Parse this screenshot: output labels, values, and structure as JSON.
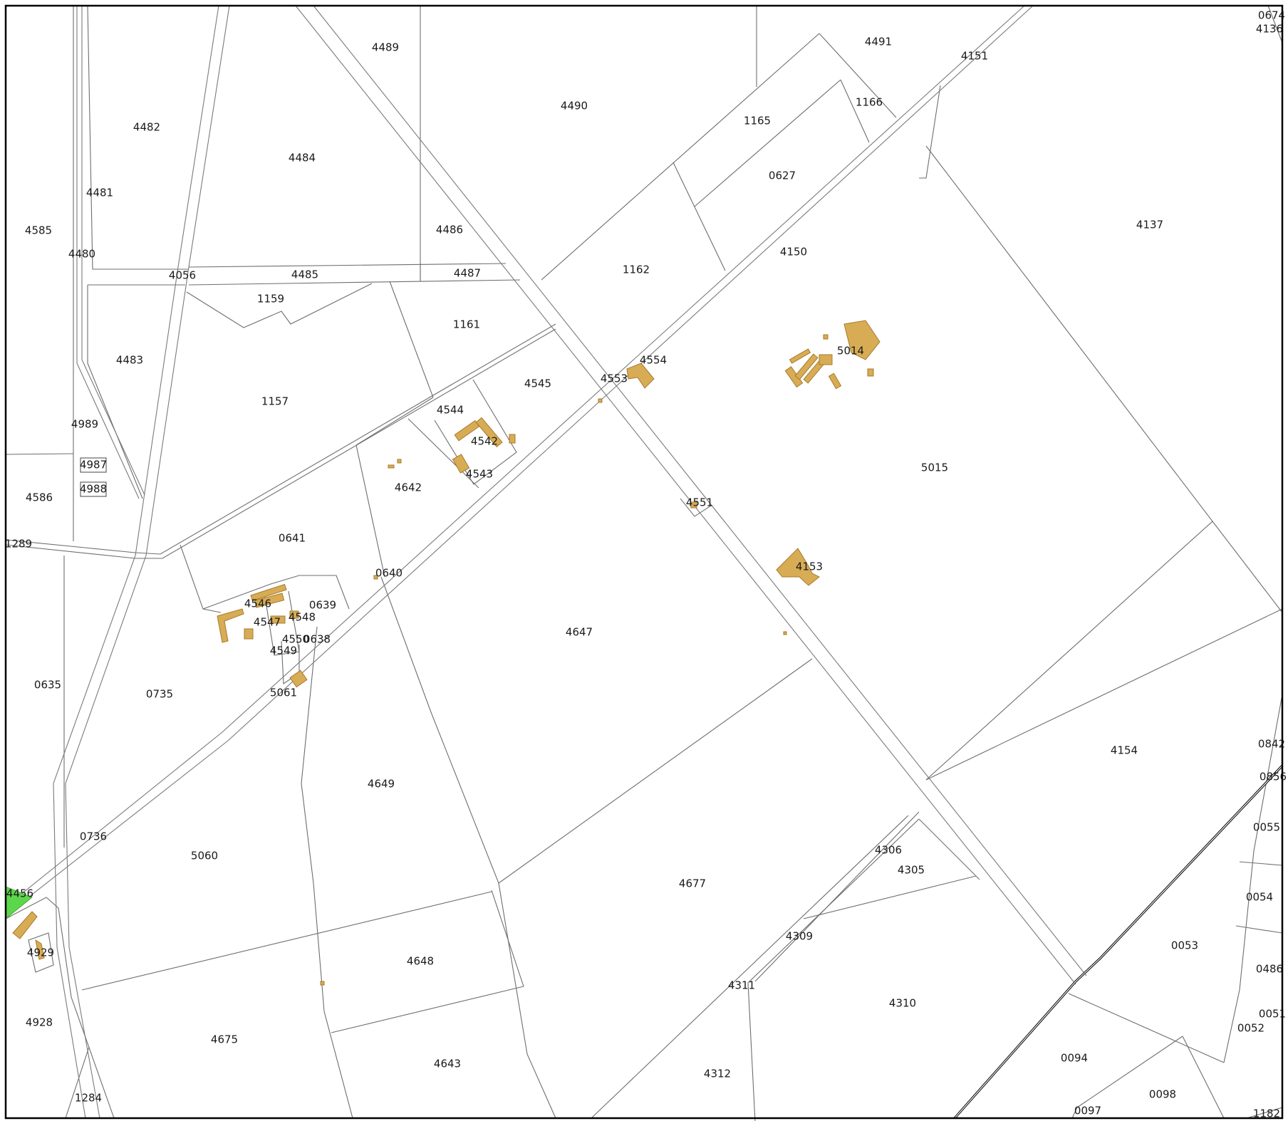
{
  "map": {
    "colors": {
      "building": "#d8ac55",
      "building_outline": "#a67a2a",
      "green_area": "#5cd64a",
      "parcel_line": "#6e6e6e",
      "rail": "#000000",
      "background": "#ffffff"
    },
    "parcel_labels": [
      "4489",
      "4490",
      "4491",
      "4151",
      "0674",
      "4136",
      "4482",
      "4484",
      "1165",
      "1166",
      "0627",
      "4481",
      "4585",
      "4486",
      "4137",
      "4480",
      "4056",
      "4485",
      "4487",
      "1162",
      "4150",
      "1159",
      "1161",
      "4483",
      "4554",
      "5014",
      "4553",
      "4545",
      "1157",
      "4544",
      "4989",
      "4542",
      "4987",
      "4543",
      "5015",
      "4642",
      "4586",
      "4988",
      "4551",
      "1289",
      "0641",
      "4153",
      "0640",
      "0639",
      "4546",
      "4548",
      "4547",
      "4550",
      "0638",
      "4549",
      "4647",
      "0635",
      "0735",
      "5061",
      "4154",
      "0842",
      "0856",
      "4649",
      "0055",
      "0736",
      "5060",
      "4306",
      "4305",
      "4677",
      "4456",
      "0054",
      "4309",
      "0053",
      "4929",
      "4648",
      "0486",
      "4311",
      "4310",
      "4928",
      "0051",
      "0052",
      "4675",
      "4643",
      "0094",
      "4312",
      "1284",
      "0098",
      "0097",
      "1182"
    ],
    "boxed_labels": [
      "4987",
      "4988"
    ]
  }
}
